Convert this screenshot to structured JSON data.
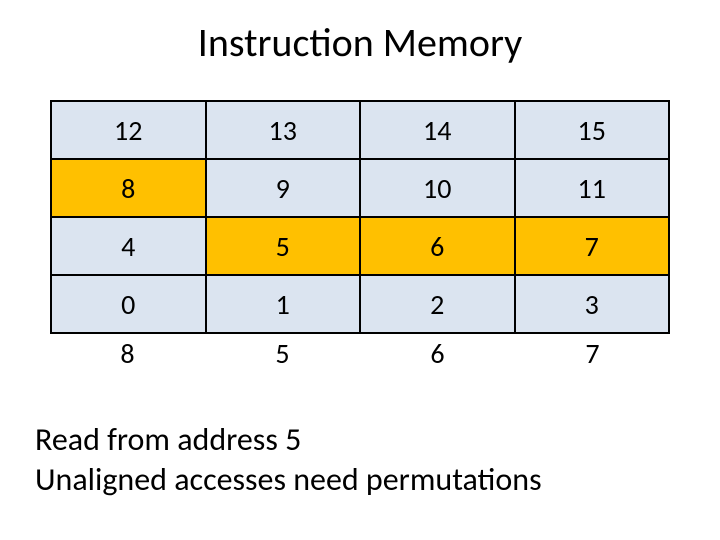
{
  "title": "Instruction Memory",
  "table": {
    "background_color": "#dbe4f0",
    "highlight_color": "#ffc000",
    "border_color": "#000000",
    "cell_fontsize": 28,
    "columns": 4,
    "rows": [
      {
        "values": [
          "12",
          "13",
          "14",
          "15"
        ],
        "highlighted": [
          false,
          false,
          false,
          false
        ]
      },
      {
        "values": [
          "8",
          "9",
          "10",
          "11"
        ],
        "highlighted": [
          true,
          false,
          false,
          false
        ]
      },
      {
        "values": [
          "4",
          "5",
          "6",
          "7"
        ],
        "highlighted": [
          false,
          true,
          true,
          true
        ]
      },
      {
        "values": [
          "0",
          "1",
          "2",
          "3"
        ],
        "highlighted": [
          false,
          false,
          false,
          false
        ]
      }
    ],
    "bottom_labels": [
      "8",
      "5",
      "6",
      "7"
    ]
  },
  "caption_line1": "Read from address 5",
  "caption_line2": "Unaligned accesses need permutations"
}
